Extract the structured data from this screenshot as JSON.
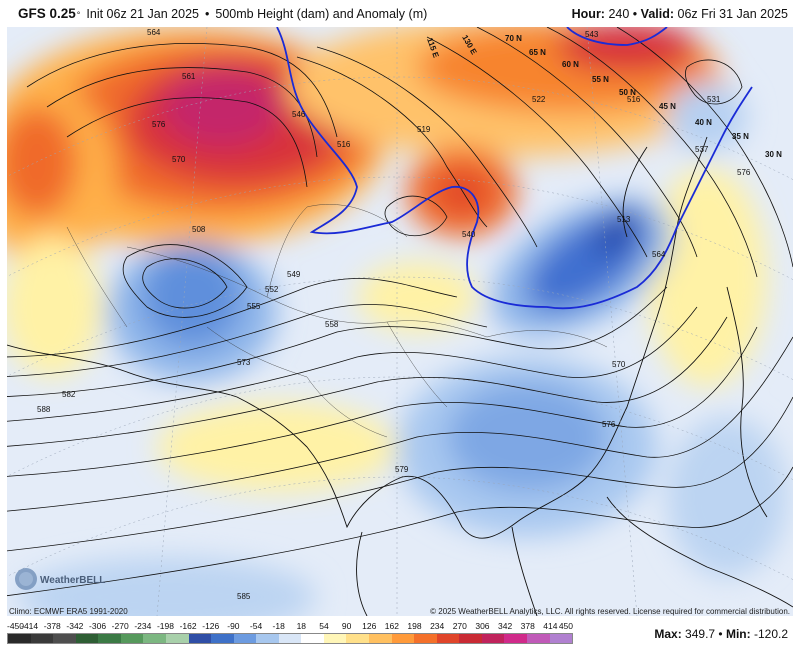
{
  "header": {
    "model": "GFS 0.25",
    "init": "Init 06z 21 Jan 2025",
    "separator": "•",
    "product": "500mb Height (dam) and Anomaly (m)",
    "hour_label": "Hour:",
    "hour_value": "240",
    "valid_label": "Valid:",
    "valid_value": "06z Fri 31 Jan 2025"
  },
  "footer": {
    "climo": "Climo: ECMWF ERA5 1991-2020",
    "copyright": "© 2025 WeatherBELL Analytics, LLC. All rights reserved. License required for commercial distribution.",
    "max_label": "Max:",
    "max_value": "349.7",
    "min_label": "Min:",
    "min_value": "-120.2",
    "logo_text": "WeatherBELL"
  },
  "colorbar": {
    "ticks": [
      "-450",
      "-414",
      "-378",
      "-342",
      "-306",
      "-270",
      "-234",
      "-198",
      "-162",
      "-126",
      "-90",
      "-54",
      "-18",
      "18",
      "54",
      "90",
      "126",
      "162",
      "198",
      "234",
      "270",
      "306",
      "342",
      "378",
      "414",
      "450"
    ],
    "colors": [
      "#2a2a2a",
      "#3a3a3a",
      "#4e4e4e",
      "#2e5e34",
      "#3b7a45",
      "#56995c",
      "#7cb781",
      "#a8d0aa",
      "#2f4ea6",
      "#3e71c8",
      "#6c9be0",
      "#a7c7ee",
      "#d9e6f7",
      "#ffffff",
      "#fff6b8",
      "#ffe08a",
      "#ffc060",
      "#ff9a3a",
      "#f4702a",
      "#e0452a",
      "#c92a34",
      "#c0235c",
      "#d02a8a",
      "#c05ab8",
      "#b080d0"
    ]
  },
  "map": {
    "contour_labels": [
      "564",
      "561",
      "570",
      "576",
      "546",
      "516",
      "519",
      "522",
      "508",
      "549",
      "552",
      "555",
      "558",
      "573",
      "582",
      "588",
      "585",
      "576",
      "579",
      "540",
      "531",
      "543",
      "537",
      "576",
      "570",
      "564",
      "513",
      "516"
    ],
    "lat_labels": [
      "70 N",
      "65 N",
      "60 N",
      "55 N",
      "50 N",
      "45 N",
      "40 N",
      "35 N",
      "30 N"
    ],
    "lon_labels": [
      "115 E",
      "130 E"
    ],
    "label_colors": {
      "blue_line": "#1a2bd6"
    }
  }
}
